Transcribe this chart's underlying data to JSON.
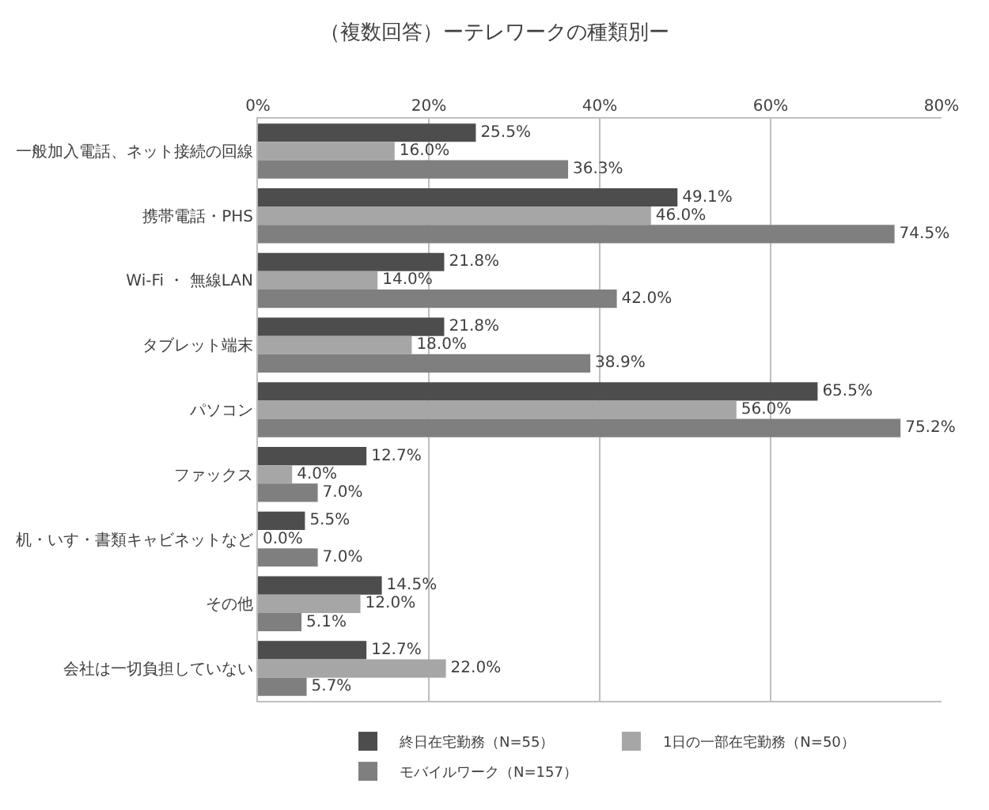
{
  "chart_data": {
    "type": "bar",
    "orientation": "horizontal",
    "title": "（複数回答）ーテレワークの種類別ー",
    "categories": [
      "一般加入電話、ネット接続の回線",
      "携帯電話・PHS",
      "Wi-Fi ・ 無線LAN",
      "タブレット端末",
      "パソコン",
      "ファックス",
      "机・いす・書類キャビネットなど",
      "その他",
      "会社は一切負担していない"
    ],
    "series": [
      {
        "name": "終日在宅勤務（N=55）",
        "color": "#4d4d4d",
        "values": [
          25.5,
          49.1,
          21.8,
          21.8,
          65.5,
          12.7,
          5.5,
          14.5,
          12.7
        ],
        "value_labels": [
          "25.5%",
          "49.1%",
          "21.8%",
          "21.8%",
          "65.5%",
          "12.7%",
          "5.5%",
          "14.5%",
          "12.7%"
        ]
      },
      {
        "name": "1日の一部在宅勤務（N=50）",
        "color": "#a6a6a6",
        "values": [
          16.0,
          46.0,
          14.0,
          18.0,
          56.0,
          4.0,
          0.0,
          12.0,
          22.0
        ],
        "value_labels": [
          "16.0%",
          "46.0%",
          "14.0%",
          "18.0%",
          "56.0%",
          "4.0%",
          "0.0%",
          "12.0%",
          "22.0%"
        ]
      },
      {
        "name": "モバイルワーク（N=157）",
        "color": "#7f7f7f",
        "values": [
          36.3,
          74.5,
          42.0,
          38.9,
          75.2,
          7.0,
          7.0,
          5.1,
          5.7
        ],
        "value_labels": [
          "36.3%",
          "74.5%",
          "42.0%",
          "38.9%",
          "75.2%",
          "7.0%",
          "7.0%",
          "5.1%",
          "5.7%"
        ]
      }
    ],
    "xlim": [
      0,
      80
    ],
    "xticks": [
      {
        "value": 0,
        "label": "0%"
      },
      {
        "value": 20,
        "label": "20%"
      },
      {
        "value": 40,
        "label": "40%"
      },
      {
        "value": 60,
        "label": "60%"
      },
      {
        "value": 80,
        "label": "80%"
      }
    ],
    "grid": "x",
    "legend": "bottom"
  }
}
